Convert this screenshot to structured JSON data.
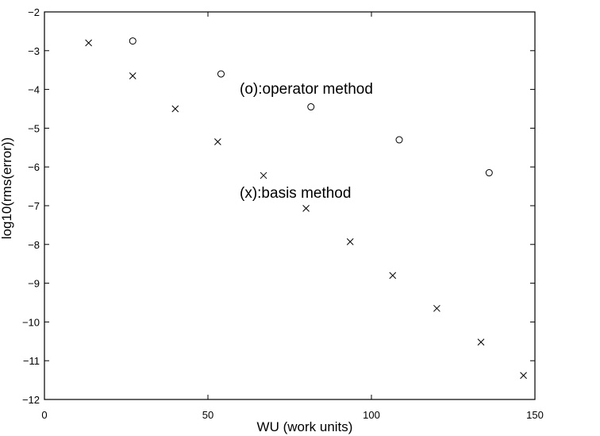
{
  "chart_data": {
    "type": "scatter",
    "xlabel": "WU (work units)",
    "ylabel": "log10(rms(error))",
    "xlim": [
      0,
      150
    ],
    "ylim": [
      -12,
      -2
    ],
    "x_ticks": [
      "0",
      "50",
      "100",
      "150"
    ],
    "y_ticks": [
      "−2",
      "−3",
      "−4",
      "−5",
      "−6",
      "−7",
      "−8",
      "−9",
      "−10",
      "−11",
      "−12"
    ],
    "grid": false,
    "annotations": [
      "(o):operator method",
      "(x):basis method"
    ],
    "series": [
      {
        "marker": "o",
        "x": [
          27,
          54,
          81.5,
          108.5,
          136
        ],
        "y": [
          -2.75,
          -3.6,
          -4.45,
          -5.3,
          -6.15
        ]
      },
      {
        "marker": "x",
        "x": [
          13.5,
          27,
          40,
          53,
          67,
          80,
          93.5,
          106.5,
          120,
          133.5,
          146.5
        ],
        "y": [
          -2.8,
          -3.65,
          -4.5,
          -5.35,
          -6.22,
          -7.07,
          -7.93,
          -8.8,
          -9.65,
          -10.52,
          -11.38
        ]
      }
    ]
  }
}
